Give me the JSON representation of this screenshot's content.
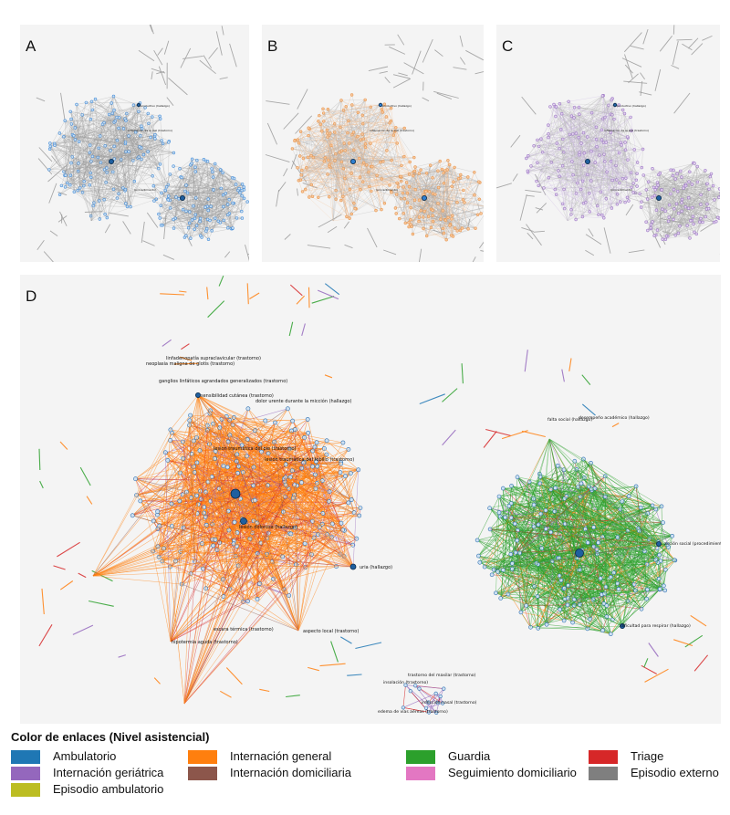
{
  "panels": [
    {
      "id": "A",
      "label": "A",
      "theme": "gray"
    },
    {
      "id": "B",
      "label": "B",
      "theme": "orange"
    },
    {
      "id": "C",
      "label": "C",
      "theme": "purple"
    },
    {
      "id": "D",
      "label": "D",
      "theme": "full"
    }
  ],
  "small_labels": [
    "productivo (hallazgo)",
    "inflamación de la piel (trastorno)",
    "(procedimiento)"
  ],
  "node_labels_left": [
    {
      "text": "linfadenopatía supraclavicular (trastorno)"
    },
    {
      "text": "neoplasia maligna de glotis (trastorno)"
    },
    {
      "text": "ganglios linfáticos agrandados generalizados (trastorno)"
    },
    {
      "text": "sensibilidad cutánea (trastorno)"
    },
    {
      "text": "dolor urente durante la micción (hallazgo)"
    },
    {
      "text": "lesión traumática del pie (trastorno)"
    },
    {
      "text": "lesión traumática del tobillo (trastorno)"
    },
    {
      "text": "lesión dolorosa (hallazgo)"
    },
    {
      "text": "uria (hallazgo)"
    },
    {
      "text": "escara térmica (trastorno)"
    },
    {
      "text": "aspecto local (trastorno)"
    },
    {
      "text": "hipotermia aguda (trastorno)"
    }
  ],
  "node_labels_right": [
    {
      "text": "falta social (hallazgo)"
    },
    {
      "text": "desempeño académico (hallazgo)"
    },
    {
      "text": "acción social (procedimiento)"
    },
    {
      "text": "dificultad para respirar (hallazgo)"
    }
  ],
  "node_labels_bottom": [
    {
      "text": "trastorno del maxilar (trastorno)"
    },
    {
      "text": "insolación (trastorno)"
    },
    {
      "text": "infección nasal (trastorno)"
    },
    {
      "text": "edema de vías aéreas (trastorno)"
    }
  ],
  "legend": {
    "title": "Color de enlaces (Nivel asistencial)",
    "items": [
      {
        "label": "Ambulatorio",
        "color": "#1f77b4"
      },
      {
        "label": "Internación geriátrica",
        "color": "#9467bd"
      },
      {
        "label": "Episodio ambulatorio",
        "color": "#bcbd22"
      },
      {
        "label": "Internación general",
        "color": "#ff7f0e"
      },
      {
        "label": "Internación domiciliaria",
        "color": "#8c564b"
      },
      {
        "label": "Guardia",
        "color": "#2ca02c"
      },
      {
        "label": "Seguimiento domiciliario",
        "color": "#e377c2"
      },
      {
        "label": "Triage",
        "color": "#d62728"
      },
      {
        "label": "Episodio externo",
        "color": "#7f7f7f"
      }
    ]
  }
}
